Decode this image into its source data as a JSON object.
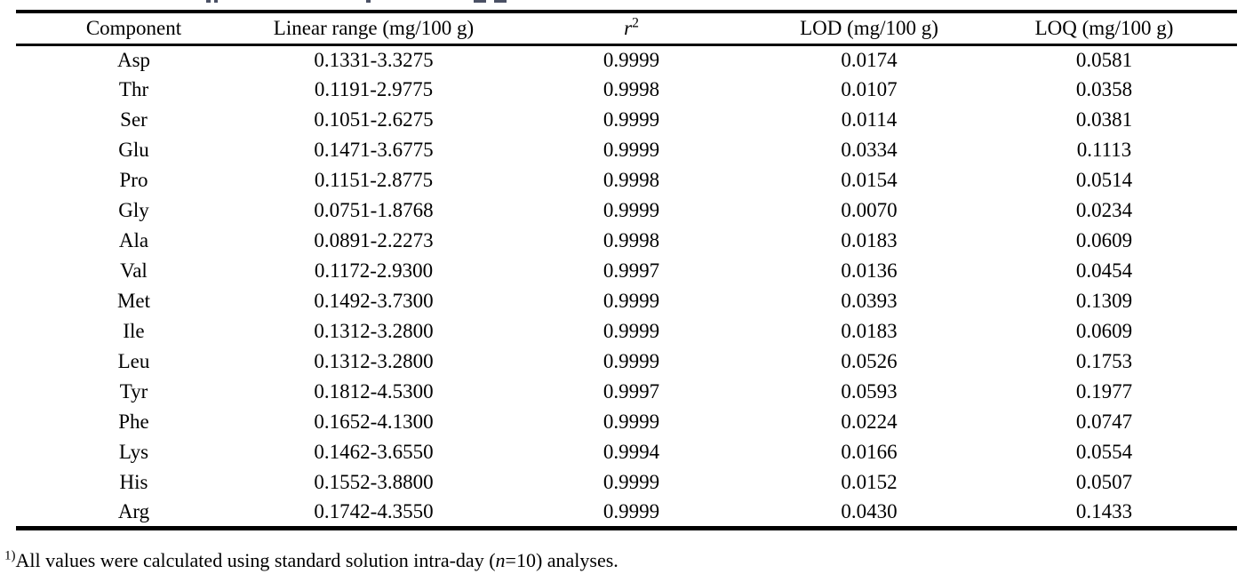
{
  "table": {
    "header": {
      "component": "Component",
      "linear_range": "Linear range (mg/100 g)",
      "r_base": "r",
      "r_sup": "2",
      "lod": "LOD (mg/100 g)",
      "loq": "LOQ (mg/100 g)"
    },
    "rows": [
      {
        "component": "Asp",
        "linear_range": "0.1331-3.3275",
        "r2": "0.9999",
        "lod": "0.0174",
        "loq": "0.0581"
      },
      {
        "component": "Thr",
        "linear_range": "0.1191-2.9775",
        "r2": "0.9998",
        "lod": "0.0107",
        "loq": "0.0358"
      },
      {
        "component": "Ser",
        "linear_range": "0.1051-2.6275",
        "r2": "0.9999",
        "lod": "0.0114",
        "loq": "0.0381"
      },
      {
        "component": "Glu",
        "linear_range": "0.1471-3.6775",
        "r2": "0.9999",
        "lod": "0.0334",
        "loq": "0.1113"
      },
      {
        "component": "Pro",
        "linear_range": "0.1151-2.8775",
        "r2": "0.9998",
        "lod": "0.0154",
        "loq": "0.0514"
      },
      {
        "component": "Gly",
        "linear_range": "0.0751-1.8768",
        "r2": "0.9999",
        "lod": "0.0070",
        "loq": "0.0234"
      },
      {
        "component": "Ala",
        "linear_range": "0.0891-2.2273",
        "r2": "0.9998",
        "lod": "0.0183",
        "loq": "0.0609"
      },
      {
        "component": "Val",
        "linear_range": "0.1172-2.9300",
        "r2": "0.9997",
        "lod": "0.0136",
        "loq": "0.0454"
      },
      {
        "component": "Met",
        "linear_range": "0.1492-3.7300",
        "r2": "0.9999",
        "lod": "0.0393",
        "loq": "0.1309"
      },
      {
        "component": "Ile",
        "linear_range": "0.1312-3.2800",
        "r2": "0.9999",
        "lod": "0.0183",
        "loq": "0.0609"
      },
      {
        "component": "Leu",
        "linear_range": "0.1312-3.2800",
        "r2": "0.9999",
        "lod": "0.0526",
        "loq": "0.1753"
      },
      {
        "component": "Tyr",
        "linear_range": "0.1812-4.5300",
        "r2": "0.9997",
        "lod": "0.0593",
        "loq": "0.1977"
      },
      {
        "component": "Phe",
        "linear_range": "0.1652-4.1300",
        "r2": "0.9999",
        "lod": "0.0224",
        "loq": "0.0747"
      },
      {
        "component": "Lys",
        "linear_range": "0.1462-3.6550",
        "r2": "0.9994",
        "lod": "0.0166",
        "loq": "0.0554"
      },
      {
        "component": "His",
        "linear_range": "0.1552-3.8800",
        "r2": "0.9999",
        "lod": "0.0152",
        "loq": "0.0507"
      },
      {
        "component": "Arg",
        "linear_range": "0.1742-4.3550",
        "r2": "0.9999",
        "lod": "0.0430",
        "loq": "0.1433"
      }
    ]
  },
  "footnote": {
    "marker": "1)",
    "text_before_n": "All values were calculated using standard solution intra-day (",
    "n_italic": "n",
    "text_after_n": "=10) analyses."
  }
}
